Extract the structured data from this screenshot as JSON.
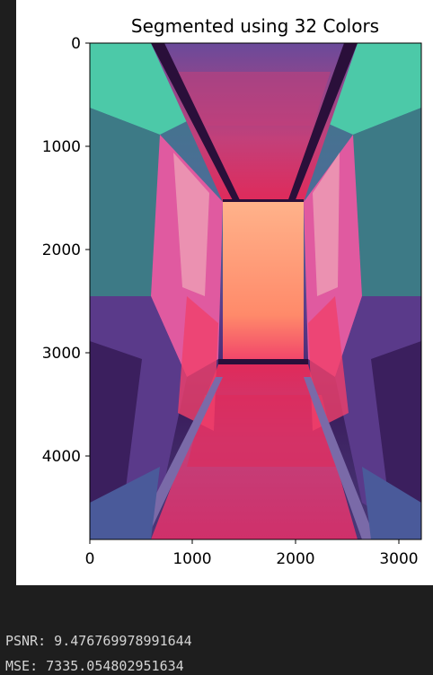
{
  "figure": {
    "title": "Segmented using 32 Colors",
    "x_ticks": [
      "0",
      "1000",
      "2000",
      "3000"
    ],
    "y_ticks": [
      "0",
      "1000",
      "2000",
      "3000",
      "4000"
    ],
    "xlim": [
      0,
      3200
    ],
    "ylim": [
      4800,
      0
    ],
    "palette": {
      "teal": "#4cc9a8",
      "slate_teal": "#3d7a86",
      "deep_purple": "#3b1f5e",
      "violet": "#5a3a8a",
      "magenta": "#c2407a",
      "hot_pink": "#f0406a",
      "salmon": "#ff8a6a",
      "peach": "#ffb28a",
      "rose": "#e05aa0",
      "crimson": "#e02a5a"
    }
  },
  "output": {
    "psnr": "PSNR: 9.476769978991644",
    "mse": "MSE: 7335.054802951634"
  }
}
